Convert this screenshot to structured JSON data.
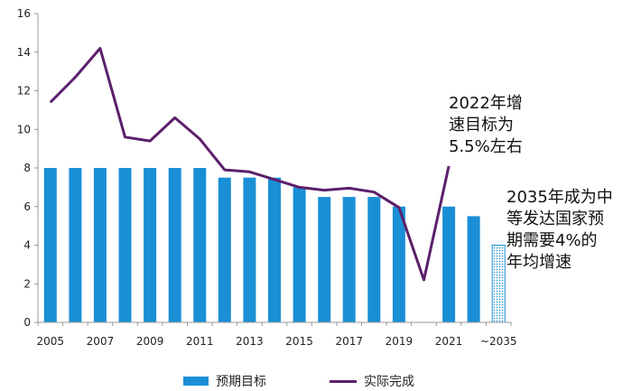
{
  "chart_data": {
    "type": "bar",
    "title": "",
    "xlabel": "",
    "ylabel": "",
    "ylim": [
      0,
      16
    ],
    "y_ticks": [
      "0",
      "2",
      "4",
      "6",
      "8",
      "10",
      "12",
      "14",
      "16"
    ],
    "x_ticks": [
      "2005",
      "2007",
      "2009",
      "2011",
      "2013",
      "2015",
      "2017",
      "2019",
      "2021",
      "~2035"
    ],
    "categories": [
      "2005",
      "2006",
      "2007",
      "2008",
      "2009",
      "2010",
      "2011",
      "2012",
      "2013",
      "2014",
      "2015",
      "2016",
      "2017",
      "2018",
      "2019",
      "2020",
      "2021",
      "2022",
      "~2035"
    ],
    "series": [
      {
        "name": "预期目标",
        "kind": "bar",
        "color": "#1a8fd6",
        "values": [
          8,
          8,
          8,
          8,
          8,
          8,
          8,
          7.5,
          7.5,
          7.5,
          7,
          6.5,
          6.5,
          6.5,
          6,
          null,
          6,
          5.5,
          4
        ]
      },
      {
        "name": "实际完成",
        "kind": "line",
        "color": "#5c1f6b",
        "values": [
          11.4,
          12.7,
          14.2,
          9.6,
          9.4,
          10.6,
          9.5,
          7.9,
          7.8,
          7.4,
          7.0,
          6.85,
          6.95,
          6.75,
          5.95,
          2.2,
          8.1,
          null,
          null
        ]
      }
    ],
    "notes": [
      "~2035 bar drawn with dotted pattern fill"
    ],
    "grid": false,
    "legend_position": "bottom"
  },
  "annotations": {
    "a2022": [
      "2022年增",
      "速目标为",
      "5.5%左右"
    ],
    "a2035": [
      "2035年成为中",
      "等发达国家预",
      "期需要4%的",
      "年均增速"
    ]
  },
  "legend": {
    "bar_label": "预期目标",
    "line_label": "实际完成"
  }
}
